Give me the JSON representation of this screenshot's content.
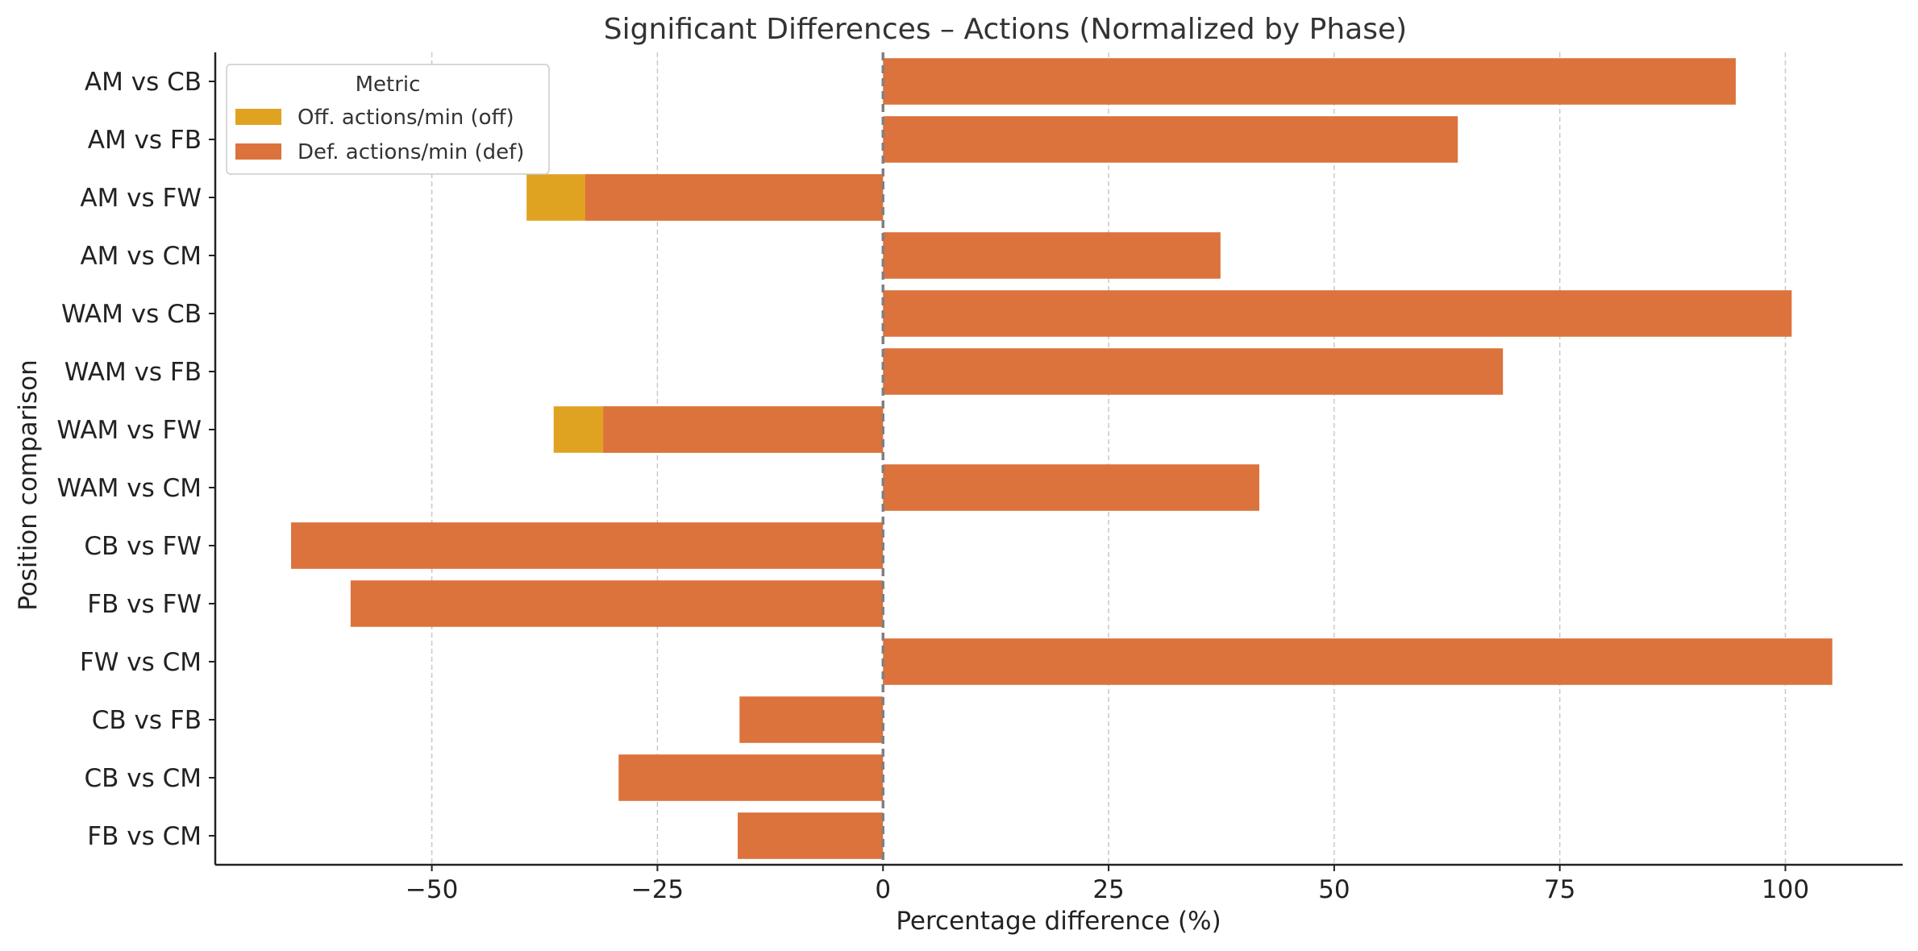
{
  "chart_data": {
    "type": "bar",
    "orientation": "horizontal",
    "title": "Significant Differences – Actions (Normalized by Phase)",
    "xlabel": "Percentage difference (%)",
    "ylabel": "Position comparison",
    "xlim": [
      -74,
      113
    ],
    "xticks": [
      -50,
      -25,
      0,
      25,
      50,
      75,
      100
    ],
    "xtick_labels": [
      "−50",
      "−25",
      "0",
      "25",
      "50",
      "75",
      "100"
    ],
    "grid": "vertical dashed",
    "reference_line": 0,
    "categories": [
      "AM vs CB",
      "AM vs FB",
      "AM vs FW",
      "AM vs CM",
      "WAM vs CB",
      "WAM vs FB",
      "WAM vs FW",
      "WAM vs CM",
      "CB vs FW",
      "FB vs FW",
      "FW vs CM",
      "CB vs FB",
      "CB vs CM",
      "FB vs CM"
    ],
    "series": [
      {
        "name": "Off. actions/min (off)",
        "color": "#E0A321",
        "values": [
          null,
          null,
          -39.5,
          null,
          null,
          null,
          -36.5,
          null,
          null,
          null,
          null,
          null,
          null,
          null
        ]
      },
      {
        "name": "Def. actions/min (def)",
        "color": "#DC723C",
        "values": [
          94.5,
          63.7,
          -33,
          37.4,
          100.7,
          68.7,
          -31,
          41.7,
          -65.6,
          -59,
          105.2,
          -15.9,
          -29.3,
          -16.1
        ]
      }
    ],
    "legend": {
      "title": "Metric",
      "position": "top-left"
    }
  }
}
